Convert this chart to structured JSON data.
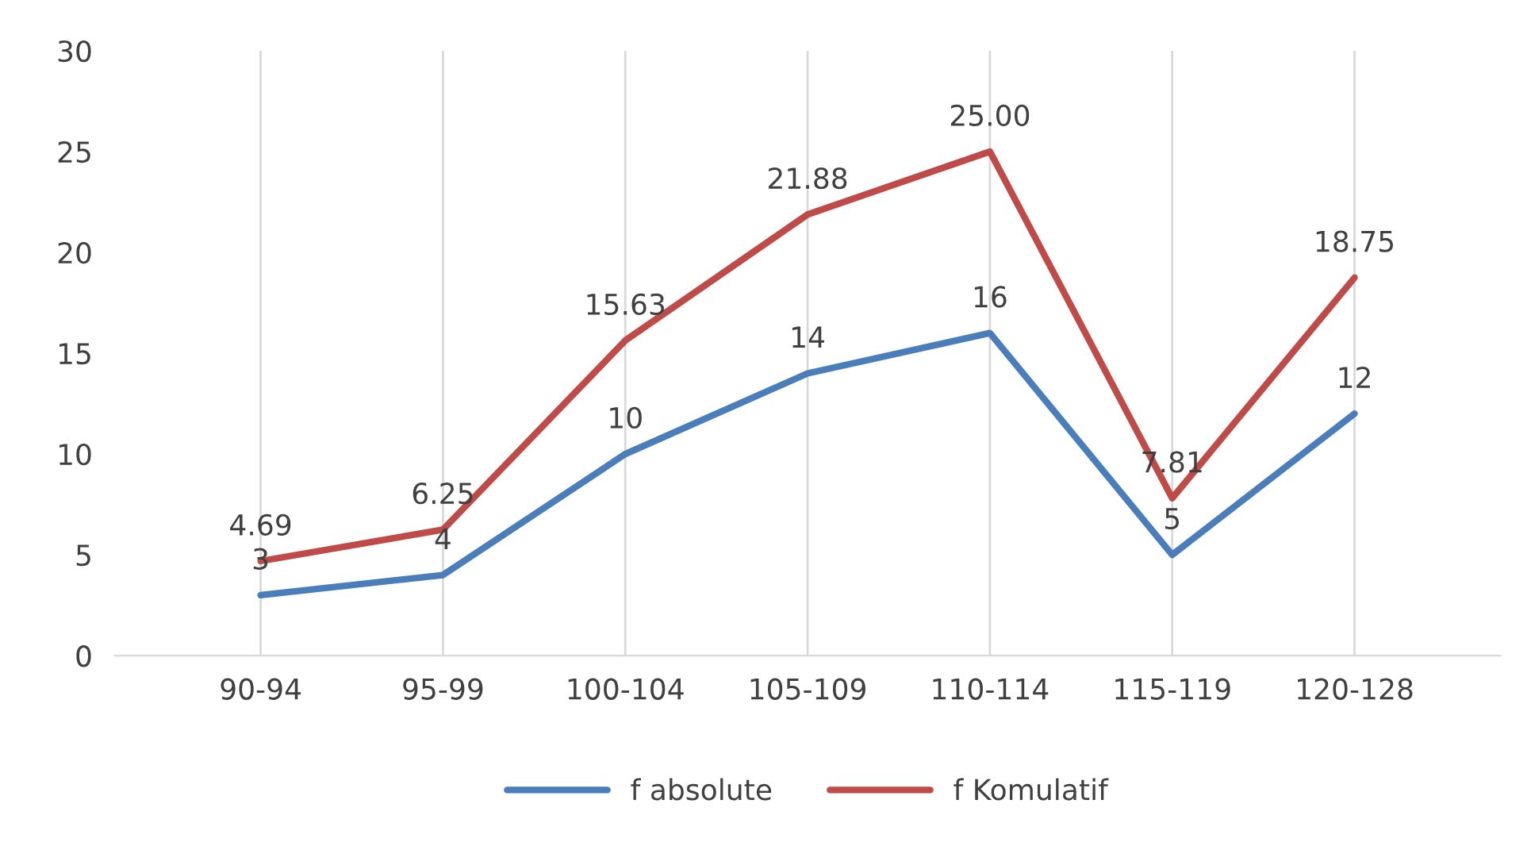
{
  "chart_data": {
    "type": "line",
    "categories": [
      "90-94",
      "95-99",
      "100-104",
      "105-109",
      "110-114",
      "115-119",
      "120-128"
    ],
    "series": [
      {
        "name": "f absolute",
        "color": "#4a7ebb",
        "values": [
          3,
          4,
          10,
          14,
          16,
          5,
          12
        ],
        "value_labels": [
          "3",
          "4",
          "10",
          "14",
          "16",
          "5",
          "12"
        ]
      },
      {
        "name": "f Komulatif",
        "color": "#be4b48",
        "values": [
          4.69,
          6.25,
          15.63,
          21.88,
          25.0,
          7.81,
          18.75
        ],
        "value_labels": [
          "4.69",
          "6.25",
          "15.63",
          "21.88",
          "25.00",
          "7.81",
          "18.75"
        ]
      }
    ],
    "ylim": [
      0,
      30
    ],
    "yticks": [
      0,
      5,
      10,
      15,
      20,
      25,
      30
    ],
    "grid": "x",
    "legend": "bottom",
    "marker": "none",
    "line_style": "solid"
  }
}
